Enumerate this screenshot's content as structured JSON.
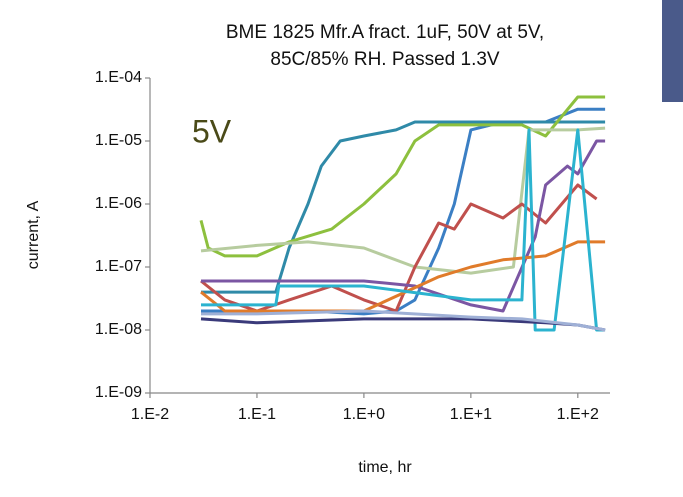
{
  "chart_data": {
    "type": "line",
    "title": [
      "BME 1825 Mfr.A  fract. 1uF, 50V at 5V,",
      "85C/85% RH. Passed 1.3V"
    ],
    "annotation": "5V",
    "x_label": "time, hr",
    "y_label": "current, A",
    "xscale": "log",
    "yscale": "log",
    "xlim": [
      0.01,
      200
    ],
    "ylim": [
      1e-09,
      0.0001
    ],
    "xticks": [
      {
        "value": 0.01,
        "label": "1.E-2"
      },
      {
        "value": 0.1,
        "label": "1.E-1"
      },
      {
        "value": 1,
        "label": "1.E+0"
      },
      {
        "value": 10,
        "label": "1.E+1"
      },
      {
        "value": 100,
        "label": "1.E+2"
      }
    ],
    "yticks": [
      {
        "value": 1e-09,
        "label": "1.E-09"
      },
      {
        "value": 1e-08,
        "label": "1.E-08"
      },
      {
        "value": 1e-07,
        "label": "1.E-07"
      },
      {
        "value": 1e-06,
        "label": "1.E-06"
      },
      {
        "value": 1e-05,
        "label": "1.E-05"
      },
      {
        "value": 0.0001,
        "label": "1.E-04"
      }
    ],
    "series": [
      {
        "color": "#3b7fc4",
        "x": [
          0.03,
          0.3,
          1,
          2,
          3,
          5,
          7,
          10,
          20,
          50,
          100,
          180
        ],
        "values": [
          2e-08,
          2e-08,
          1.8e-08,
          2e-08,
          3e-08,
          2e-07,
          1e-06,
          1.5e-05,
          2e-05,
          2e-05,
          3.2e-05,
          3.2e-05
        ]
      },
      {
        "color": "#2f8aa8",
        "x": [
          0.03,
          0.15,
          0.2,
          0.3,
          0.4,
          0.6,
          1,
          2,
          3,
          10,
          180
        ],
        "values": [
          4e-08,
          4e-08,
          2e-07,
          1e-06,
          4e-06,
          1e-05,
          1.2e-05,
          1.5e-05,
          2e-05,
          2e-05,
          2e-05
        ]
      },
      {
        "color": "#8dc03e",
        "x": [
          0.03,
          0.035,
          0.05,
          0.1,
          0.2,
          0.5,
          1,
          2,
          3,
          5,
          10,
          30,
          50,
          100,
          180
        ],
        "values": [
          5.5e-07,
          2e-07,
          1.5e-07,
          1.5e-07,
          2.5e-07,
          4e-07,
          1e-06,
          3e-06,
          1e-05,
          1.8e-05,
          1.8e-05,
          1.8e-05,
          1.2e-05,
          5e-05,
          5e-05
        ]
      },
      {
        "color": "#b7cc9f",
        "x": [
          0.03,
          0.1,
          0.3,
          1,
          3,
          10,
          25,
          35,
          100,
          180
        ],
        "values": [
          1.8e-07,
          2.2e-07,
          2.5e-07,
          2e-07,
          1e-07,
          8e-08,
          1e-07,
          1.5e-05,
          1.5e-05,
          1.6e-05
        ]
      },
      {
        "color": "#c0504d",
        "x": [
          0.03,
          0.05,
          0.1,
          0.2,
          0.5,
          1,
          2,
          3,
          5,
          7,
          10,
          20,
          30,
          50,
          100,
          150
        ],
        "values": [
          6e-08,
          3e-08,
          2e-08,
          3e-08,
          5e-08,
          3e-08,
          2e-08,
          1e-07,
          5e-07,
          4e-07,
          1e-06,
          6e-07,
          1e-06,
          5e-07,
          2e-06,
          1.2e-06
        ]
      },
      {
        "color": "#7b56a3",
        "x": [
          0.03,
          0.3,
          1,
          3,
          10,
          20,
          40,
          50,
          80,
          100,
          150,
          180
        ],
        "values": [
          6e-08,
          6e-08,
          6e-08,
          5e-08,
          2.5e-08,
          2e-08,
          3e-07,
          2e-06,
          4e-06,
          3e-06,
          1e-05,
          1e-05
        ]
      },
      {
        "color": "#e07b2a",
        "x": [
          0.03,
          0.05,
          0.1,
          1,
          5,
          10,
          20,
          50,
          100,
          180
        ],
        "values": [
          4e-08,
          2e-08,
          2e-08,
          2e-08,
          7e-08,
          1e-07,
          1.3e-07,
          1.5e-07,
          2.5e-07,
          2.5e-07
        ]
      },
      {
        "color": "#2bb3cf",
        "x": [
          0.03,
          0.15,
          0.16,
          1,
          10,
          30,
          35,
          40,
          60,
          100,
          150,
          180
        ],
        "values": [
          2.5e-08,
          2.5e-08,
          5e-08,
          5e-08,
          3e-08,
          3e-08,
          1.5e-05,
          1e-08,
          1e-08,
          1.5e-05,
          1e-08,
          1e-08
        ]
      },
      {
        "color": "#3a3a7a",
        "x": [
          0.03,
          0.1,
          1,
          10,
          50,
          100,
          180
        ],
        "values": [
          1.5e-08,
          1.3e-08,
          1.5e-08,
          1.5e-08,
          1.3e-08,
          1.2e-08,
          1e-08
        ]
      },
      {
        "color": "#9fb0d6",
        "x": [
          0.03,
          0.1,
          1,
          10,
          30,
          100,
          180
        ],
        "values": [
          1.8e-08,
          1.8e-08,
          2e-08,
          1.6e-08,
          1.5e-08,
          1.2e-08,
          1e-08
        ]
      }
    ]
  }
}
